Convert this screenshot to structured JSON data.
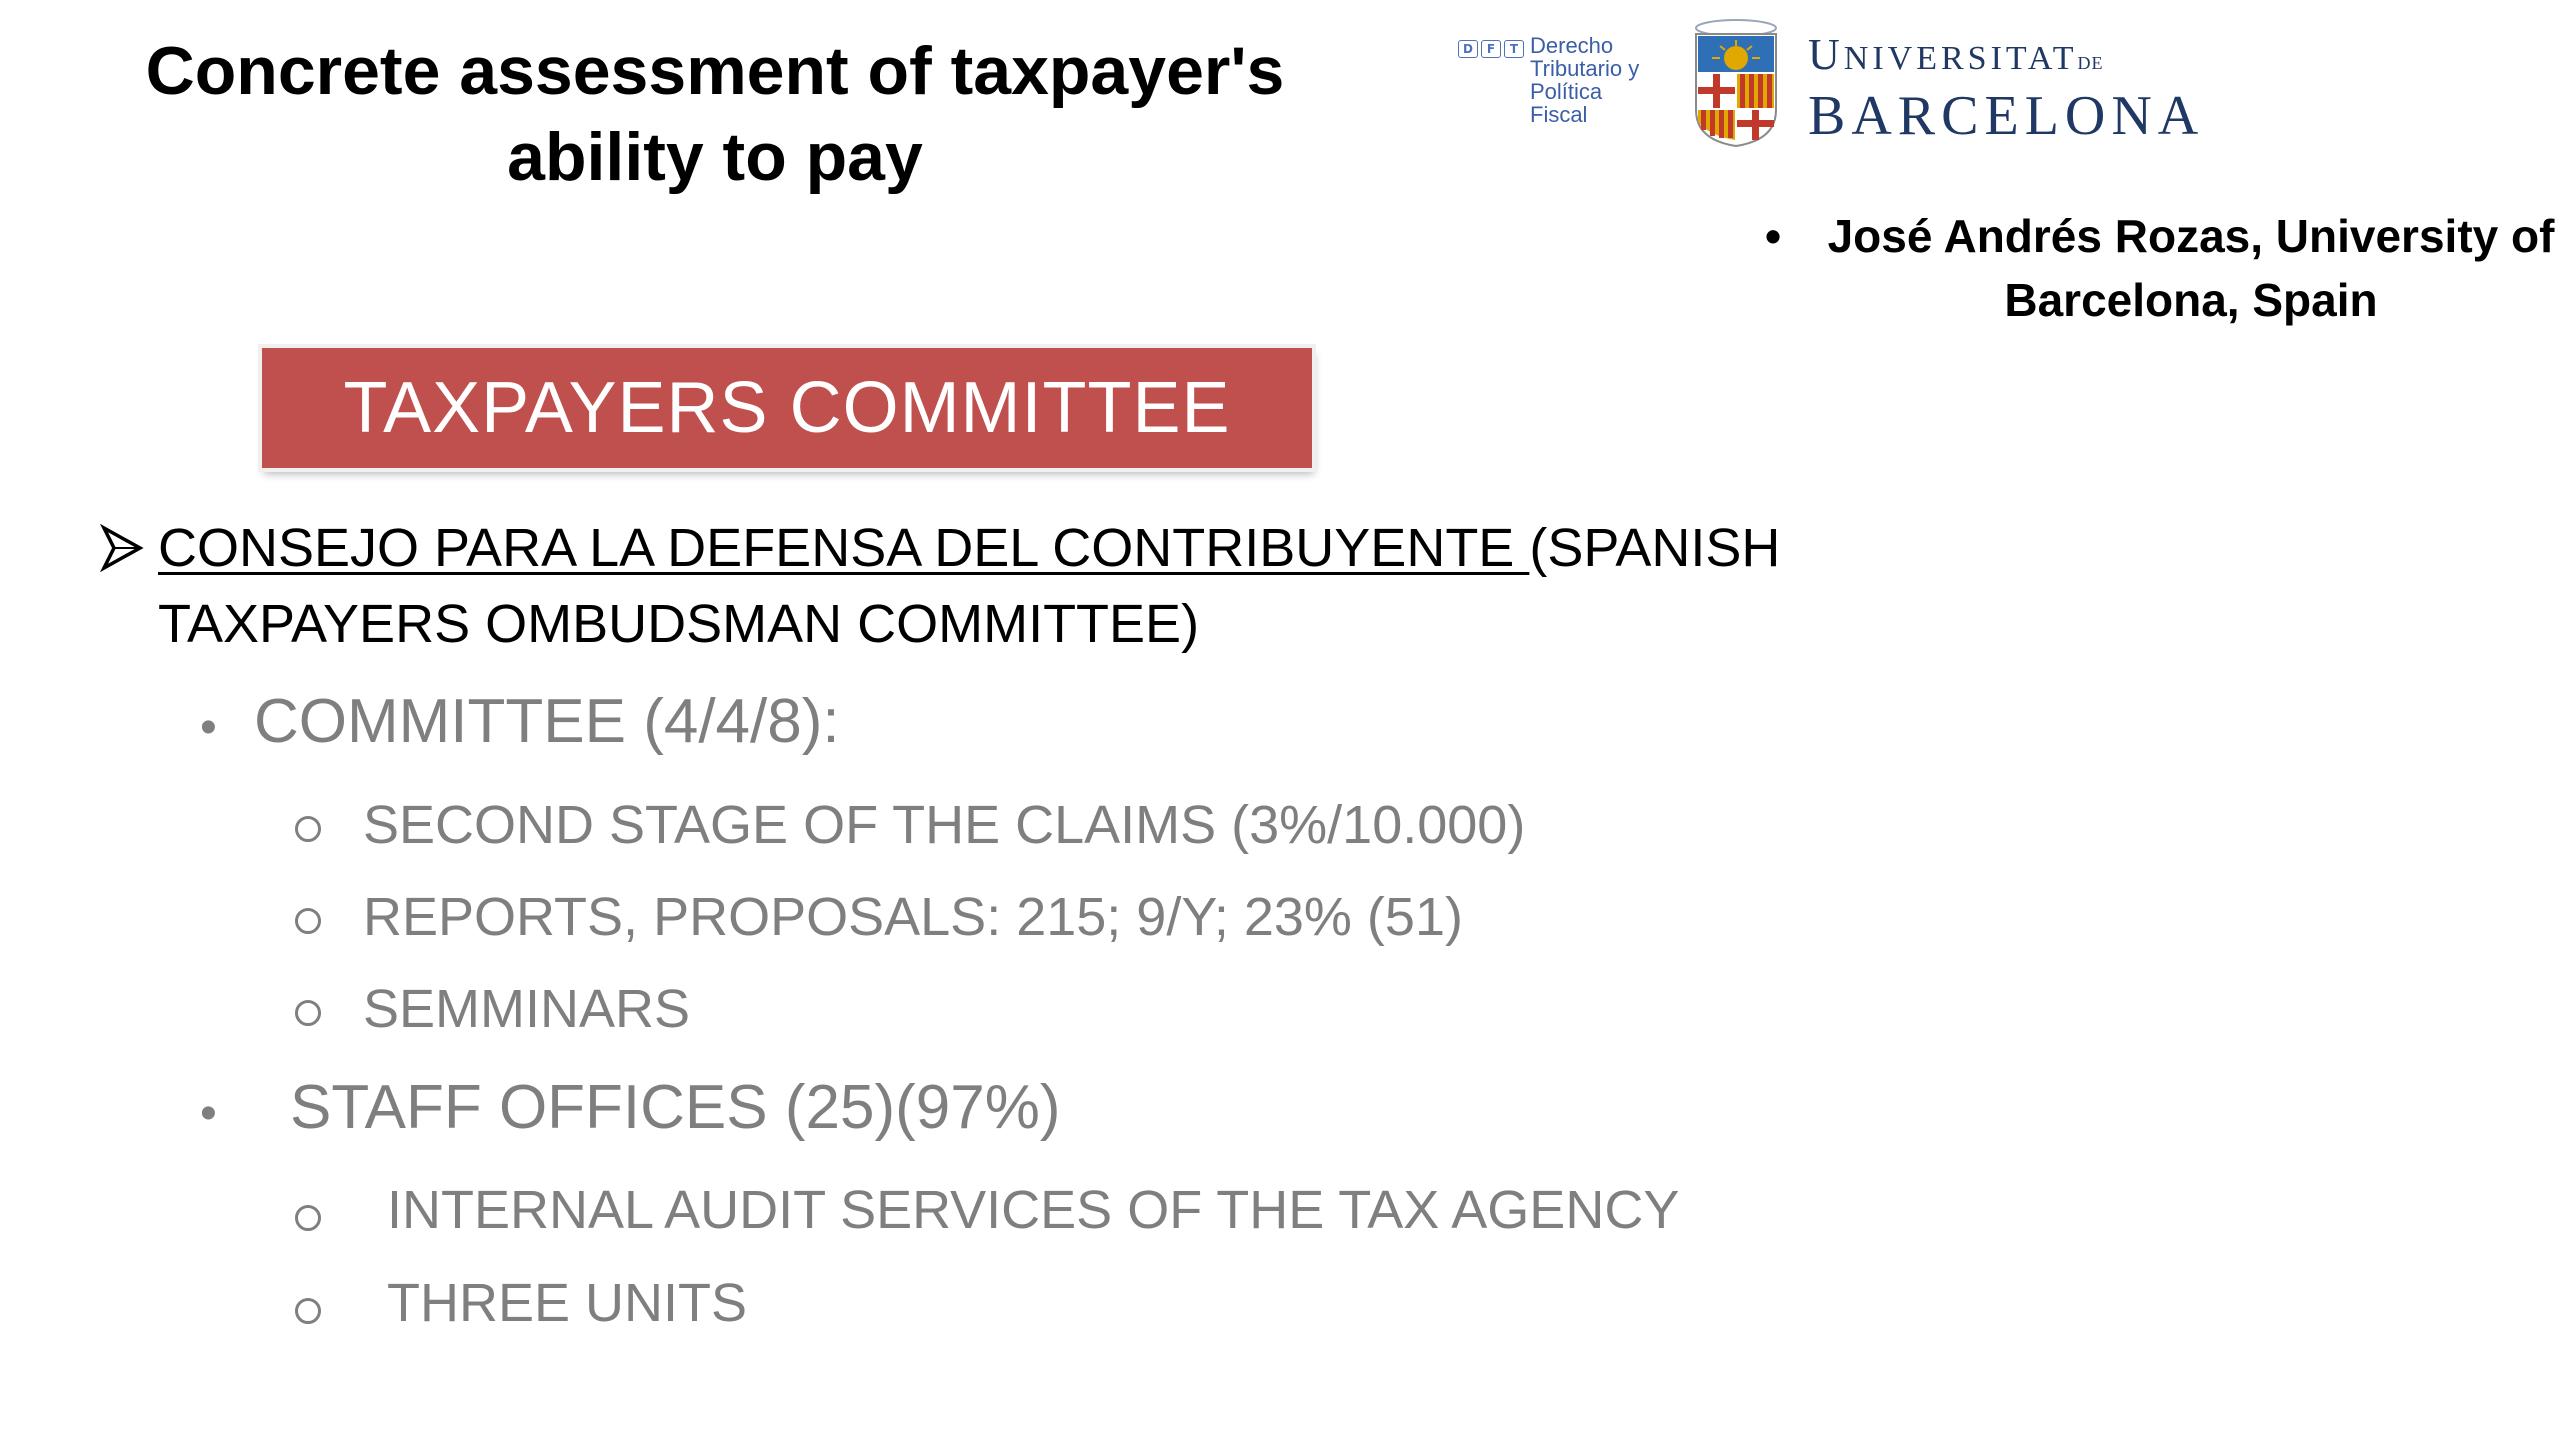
{
  "title": {
    "line1": "Concrete assessment of taxpayer's",
    "line2": "ability to pay"
  },
  "logos": {
    "dft_badge": [
      "D",
      "F",
      "T"
    ],
    "dft_lines": [
      "Derecho",
      "Tributario y",
      "Política",
      "Fiscal"
    ],
    "ub_line1_a": "U",
    "ub_line1_b": "NIVERSITAT",
    "ub_line1_de": "DE",
    "ub_line2": "BARCELONA",
    "shield_icon": "university-shield-icon",
    "colors": {
      "dft_blue": "#3b5ea8",
      "ub_navy": "#1f3864",
      "shield_red": "#c0392b",
      "shield_gold": "#e0a800"
    }
  },
  "author": {
    "bullet": "•",
    "text": "José Andrés Rozas, University of Barcelona, Spain"
  },
  "banner": {
    "label": "TAXPAYERS COMMITTEE",
    "color": "#c0504d"
  },
  "content": {
    "main_icon": "arrow-bullet-icon",
    "main_underlined": "CONSEJO PARA LA DEFENSA DEL CONTRIBUYENTE ",
    "main_rest": "(SPANISH TAXPAYERS OMBUDSMAN COMMITTEE)",
    "items": [
      {
        "label": "COMMITTEE (4/4/8):",
        "children": [
          "SECOND STAGE OF THE CLAIMS (3%/10.000)",
          "REPORTS, PROPOSALS: 215; 9/Y; 23% (51)",
          "SEMMINARS"
        ]
      },
      {
        "label": "STAFF OFFICES (25)(97%)",
        "children": [
          "INTERNAL AUDIT SERVICES OF THE TAX AGENCY",
          "THREE UNITS"
        ]
      }
    ],
    "grey_color": "#7f7f7f"
  }
}
